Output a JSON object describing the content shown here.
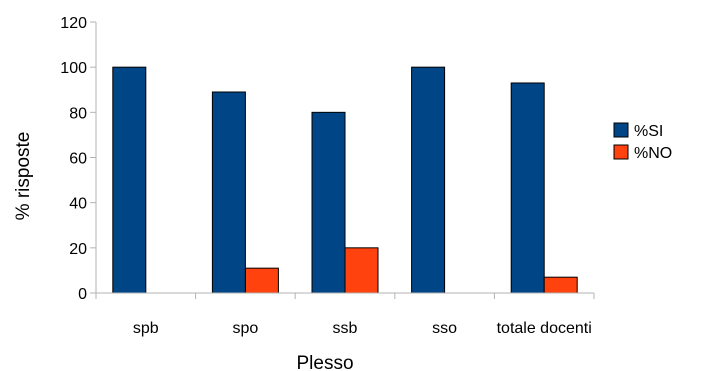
{
  "chart_data": {
    "type": "bar",
    "title": "",
    "xlabel": "Plesso",
    "ylabel": "% risposte",
    "ylim": [
      0,
      120
    ],
    "yticks": [
      0,
      20,
      40,
      60,
      80,
      100,
      120
    ],
    "categories": [
      "spb",
      "spo",
      "ssb",
      "sso",
      "totale docenti"
    ],
    "series": [
      {
        "name": "%SI",
        "color": "#004586",
        "values": [
          100,
          89,
          80,
          100,
          93
        ]
      },
      {
        "name": "%NO",
        "color": "#ff420e",
        "values": [
          0,
          11,
          20,
          0,
          7
        ]
      }
    ],
    "grid": false,
    "legend_position": "right"
  }
}
